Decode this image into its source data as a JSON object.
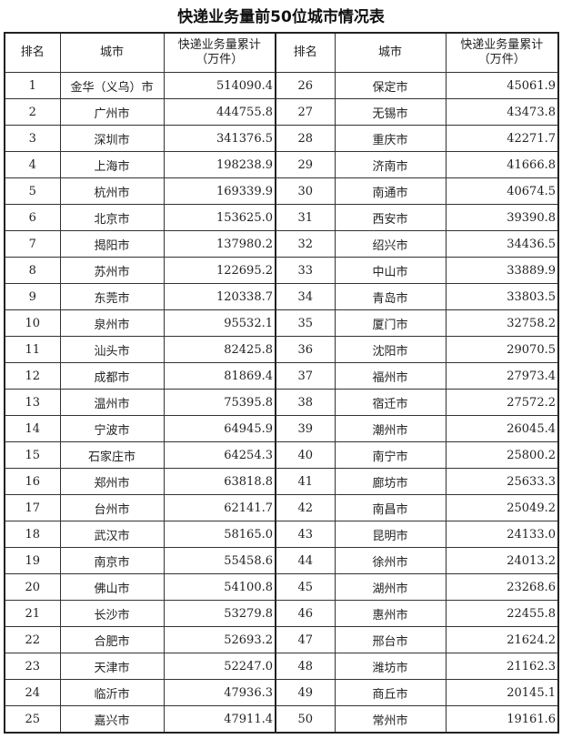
{
  "title": "快递业务量前50位城市情况表",
  "headers": {
    "rank": "排名",
    "city": "城市",
    "volume_line1": "快递业务量累计",
    "volume_line2": "（万件）"
  },
  "rows": [
    {
      "l": {
        "rank": "1",
        "city": "金华（义乌）市",
        "value": "514090.4"
      },
      "r": {
        "rank": "26",
        "city": "保定市",
        "value": "45061.9"
      }
    },
    {
      "l": {
        "rank": "2",
        "city": "广州市",
        "value": "444755.8"
      },
      "r": {
        "rank": "27",
        "city": "无锡市",
        "value": "43473.8"
      }
    },
    {
      "l": {
        "rank": "3",
        "city": "深圳市",
        "value": "341376.5"
      },
      "r": {
        "rank": "28",
        "city": "重庆市",
        "value": "42271.7"
      }
    },
    {
      "l": {
        "rank": "4",
        "city": "上海市",
        "value": "198238.9"
      },
      "r": {
        "rank": "29",
        "city": "济南市",
        "value": "41666.8"
      }
    },
    {
      "l": {
        "rank": "5",
        "city": "杭州市",
        "value": "169339.9"
      },
      "r": {
        "rank": "30",
        "city": "南通市",
        "value": "40674.5"
      }
    },
    {
      "l": {
        "rank": "6",
        "city": "北京市",
        "value": "153625.0"
      },
      "r": {
        "rank": "31",
        "city": "西安市",
        "value": "39390.8"
      }
    },
    {
      "l": {
        "rank": "7",
        "city": "揭阳市",
        "value": "137980.2"
      },
      "r": {
        "rank": "32",
        "city": "绍兴市",
        "value": "34436.5"
      }
    },
    {
      "l": {
        "rank": "8",
        "city": "苏州市",
        "value": "122695.2"
      },
      "r": {
        "rank": "33",
        "city": "中山市",
        "value": "33889.9"
      }
    },
    {
      "l": {
        "rank": "9",
        "city": "东莞市",
        "value": "120338.7"
      },
      "r": {
        "rank": "34",
        "city": "青岛市",
        "value": "33803.5"
      }
    },
    {
      "l": {
        "rank": "10",
        "city": "泉州市",
        "value": "95532.1"
      },
      "r": {
        "rank": "35",
        "city": "厦门市",
        "value": "32758.2"
      }
    },
    {
      "l": {
        "rank": "11",
        "city": "汕头市",
        "value": "82425.8"
      },
      "r": {
        "rank": "36",
        "city": "沈阳市",
        "value": "29070.5"
      }
    },
    {
      "l": {
        "rank": "12",
        "city": "成都市",
        "value": "81869.4"
      },
      "r": {
        "rank": "37",
        "city": "福州市",
        "value": "27973.4"
      }
    },
    {
      "l": {
        "rank": "13",
        "city": "温州市",
        "value": "75395.8"
      },
      "r": {
        "rank": "38",
        "city": "宿迁市",
        "value": "27572.2"
      }
    },
    {
      "l": {
        "rank": "14",
        "city": "宁波市",
        "value": "64945.9"
      },
      "r": {
        "rank": "39",
        "city": "潮州市",
        "value": "26045.4"
      }
    },
    {
      "l": {
        "rank": "15",
        "city": "石家庄市",
        "value": "64254.3"
      },
      "r": {
        "rank": "40",
        "city": "南宁市",
        "value": "25800.2"
      }
    },
    {
      "l": {
        "rank": "16",
        "city": "郑州市",
        "value": "63818.8"
      },
      "r": {
        "rank": "41",
        "city": "廊坊市",
        "value": "25633.3"
      }
    },
    {
      "l": {
        "rank": "17",
        "city": "台州市",
        "value": "62141.7"
      },
      "r": {
        "rank": "42",
        "city": "南昌市",
        "value": "25049.2"
      }
    },
    {
      "l": {
        "rank": "18",
        "city": "武汉市",
        "value": "58165.0"
      },
      "r": {
        "rank": "43",
        "city": "昆明市",
        "value": "24133.0"
      }
    },
    {
      "l": {
        "rank": "19",
        "city": "南京市",
        "value": "55458.6"
      },
      "r": {
        "rank": "44",
        "city": "徐州市",
        "value": "24013.2"
      }
    },
    {
      "l": {
        "rank": "20",
        "city": "佛山市",
        "value": "54100.8"
      },
      "r": {
        "rank": "45",
        "city": "湖州市",
        "value": "23268.6"
      }
    },
    {
      "l": {
        "rank": "21",
        "city": "长沙市",
        "value": "53279.8"
      },
      "r": {
        "rank": "46",
        "city": "惠州市",
        "value": "22455.8"
      }
    },
    {
      "l": {
        "rank": "22",
        "city": "合肥市",
        "value": "52693.2"
      },
      "r": {
        "rank": "47",
        "city": "邢台市",
        "value": "21624.2"
      }
    },
    {
      "l": {
        "rank": "23",
        "city": "天津市",
        "value": "52247.0"
      },
      "r": {
        "rank": "48",
        "city": "潍坊市",
        "value": "21162.3"
      }
    },
    {
      "l": {
        "rank": "24",
        "city": "临沂市",
        "value": "47936.3"
      },
      "r": {
        "rank": "49",
        "city": "商丘市",
        "value": "20145.1"
      }
    },
    {
      "l": {
        "rank": "25",
        "city": "嘉兴市",
        "value": "47911.4"
      },
      "r": {
        "rank": "50",
        "city": "常州市",
        "value": "19161.6"
      }
    }
  ]
}
